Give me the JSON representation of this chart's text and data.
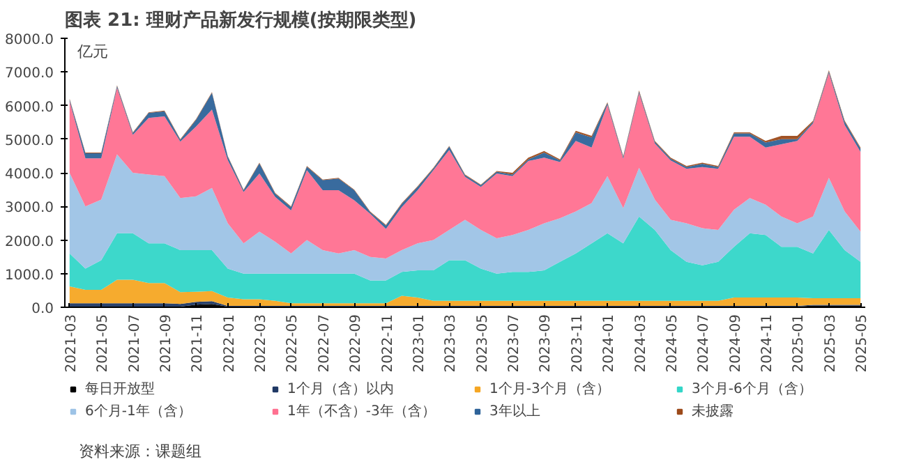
{
  "chart_data": {
    "type": "area",
    "stacked": true,
    "title": "图表 21: 理财产品新发行规模(按期限类型)",
    "ylabel": "亿元",
    "annotations": [
      "资料来源：课题组"
    ],
    "categories": [
      "2021-03",
      null,
      "2021-05",
      null,
      "2021-07",
      null,
      "2021-09",
      null,
      "2021-11",
      null,
      "2022-01",
      null,
      "2022-03",
      null,
      "2022-05",
      null,
      "2022-07",
      null,
      "2022-09",
      null,
      "2022-11",
      null,
      "2023-01",
      null,
      "2023-03",
      null,
      "2023-05",
      null,
      "2023-07",
      null,
      "2023-09",
      null,
      "2023-11",
      null,
      "2024-01",
      null,
      "2024-03",
      null,
      "2024-05",
      null,
      "2024-07",
      null,
      "2024-09",
      null,
      "2024-11",
      null,
      "2025-01",
      null,
      "2025-03",
      null,
      "2025-05"
    ],
    "ylim": [
      0,
      8000
    ],
    "yticks": [
      {
        "value": 0,
        "label": "0.0"
      },
      {
        "value": 1000,
        "label": "1000.0"
      },
      {
        "value": 2000,
        "label": "2000.0"
      },
      {
        "value": 3000,
        "label": "3000.0"
      },
      {
        "value": 4000,
        "label": "4000.0"
      },
      {
        "value": 5000,
        "label": "5000.0"
      },
      {
        "value": 6000,
        "label": "6000.0"
      },
      {
        "value": 7000,
        "label": "7000.0"
      },
      {
        "value": 8000,
        "label": "8000.0"
      }
    ],
    "legend": "bottom",
    "series": [
      {
        "name": "每日开放型",
        "color": "#000000",
        "values": [
          20,
          20,
          20,
          20,
          20,
          20,
          20,
          20,
          80,
          100,
          20,
          20,
          20,
          20,
          20,
          20,
          20,
          20,
          20,
          20,
          20,
          20,
          20,
          20,
          20,
          20,
          20,
          20,
          20,
          20,
          20,
          20,
          20,
          20,
          20,
          20,
          20,
          20,
          20,
          20,
          20,
          20,
          20,
          20,
          20,
          20,
          20,
          50,
          50,
          50,
          50
        ]
      },
      {
        "name": "1个月（含）以内",
        "color": "#1f3864",
        "values": [
          100,
          100,
          100,
          100,
          100,
          100,
          100,
          80,
          80,
          80,
          20,
          20,
          20,
          20,
          20,
          20,
          20,
          20,
          20,
          20,
          20,
          20,
          20,
          20,
          20,
          20,
          20,
          20,
          20,
          20,
          20,
          20,
          20,
          20,
          20,
          20,
          20,
          20,
          20,
          20,
          20,
          20,
          20,
          20,
          20,
          20,
          20,
          20,
          20,
          20,
          20
        ]
      },
      {
        "name": "1个月-3个月（含）",
        "color": "#f5a623",
        "values": [
          500,
          400,
          400,
          700,
          700,
          600,
          600,
          350,
          300,
          300,
          250,
          200,
          200,
          150,
          80,
          80,
          80,
          80,
          80,
          80,
          80,
          300,
          250,
          150,
          150,
          150,
          150,
          150,
          150,
          150,
          150,
          150,
          150,
          150,
          150,
          150,
          150,
          150,
          150,
          150,
          150,
          150,
          250,
          250,
          250,
          250,
          250,
          200,
          200,
          200,
          200
        ]
      },
      {
        "name": "3个月-6个月（含）",
        "color": "#33d6c8",
        "values": [
          980,
          630,
          880,
          1380,
          1380,
          1180,
          1180,
          1250,
          1240,
          1220,
          860,
          760,
          760,
          810,
          880,
          880,
          880,
          880,
          880,
          680,
          680,
          710,
          810,
          910,
          1210,
          1210,
          960,
          810,
          860,
          860,
          910,
          1160,
          1410,
          1710,
          2010,
          1710,
          2510,
          2110,
          1510,
          1160,
          1060,
          1160,
          1510,
          1910,
          1860,
          1510,
          1510,
          1330,
          2030,
          1430,
          1080
        ]
      },
      {
        "name": "6个月-1年（含）",
        "color": "#9dc3e6",
        "values": [
          2400,
          1850,
          1800,
          2350,
          1800,
          2050,
          2000,
          1550,
          1600,
          1850,
          1350,
          900,
          1250,
          950,
          600,
          1000,
          700,
          600,
          700,
          700,
          650,
          650,
          800,
          900,
          900,
          1200,
          1150,
          1050,
          1100,
          1250,
          1400,
          1300,
          1250,
          1200,
          1700,
          1050,
          1450,
          900,
          900,
          1150,
          1100,
          950,
          1100,
          1050,
          900,
          900,
          700,
          1100,
          1550,
          1150,
          900
        ]
      },
      {
        "name": "1年（不含）-3年（含）",
        "color": "#ff7090",
        "values": [
          2130,
          1430,
          1230,
          1980,
          1130,
          1680,
          1780,
          1680,
          2080,
          2330,
          1880,
          1530,
          1730,
          1330,
          1280,
          2080,
          1780,
          1880,
          1480,
          1280,
          880,
          1280,
          1580,
          2080,
          2380,
          1280,
          1280,
          1930,
          1750,
          2050,
          1950,
          1670,
          2100,
          1650,
          2120,
          1470,
          2220,
          1670,
          1770,
          1620,
          1820,
          1820,
          2170,
          1820,
          1700,
          2150,
          2450,
          2770,
          3120,
          2570,
          2370
        ]
      },
      {
        "name": "3年以上",
        "color": "#2e6399",
        "values": [
          50,
          150,
          150,
          50,
          50,
          150,
          150,
          50,
          200,
          500,
          100,
          50,
          300,
          100,
          100,
          100,
          300,
          350,
          300,
          50,
          100,
          100,
          100,
          50,
          100,
          50,
          50,
          50,
          50,
          50,
          150,
          50,
          250,
          300,
          50,
          50,
          50,
          50,
          50,
          50,
          100,
          50,
          100,
          100,
          150,
          150,
          50,
          50,
          50,
          100,
          100
        ]
      },
      {
        "name": "未披露",
        "color": "#9c4a1a",
        "values": [
          20,
          20,
          20,
          20,
          20,
          20,
          20,
          20,
          20,
          20,
          20,
          20,
          20,
          20,
          20,
          20,
          20,
          20,
          20,
          20,
          20,
          20,
          20,
          20,
          20,
          20,
          20,
          20,
          50,
          50,
          50,
          30,
          50,
          50,
          30,
          30,
          30,
          30,
          30,
          30,
          30,
          30,
          30,
          30,
          50,
          100,
          100,
          30,
          30,
          30,
          30
        ]
      }
    ]
  }
}
